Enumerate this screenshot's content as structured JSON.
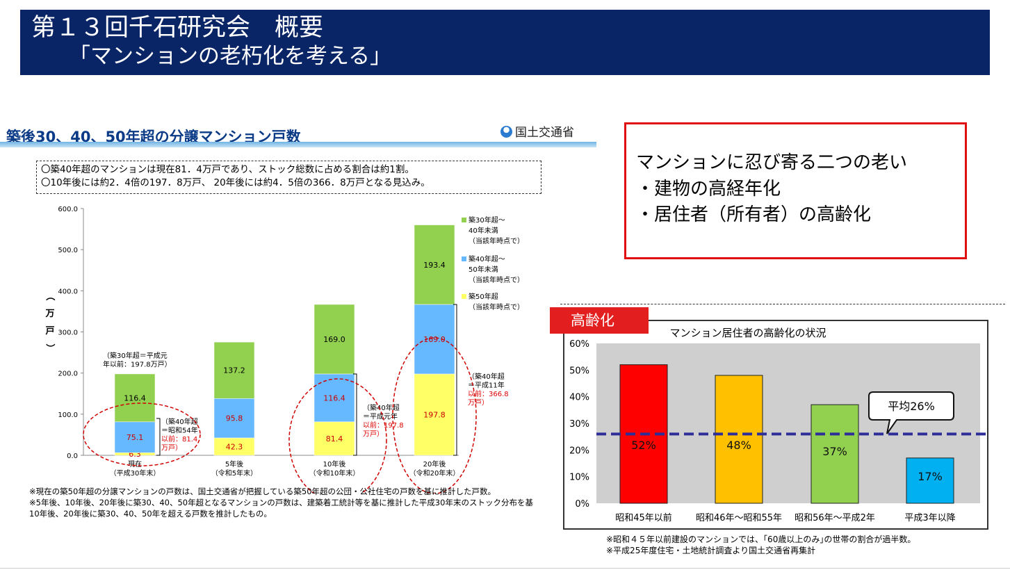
{
  "slide": {
    "title_line1": "第１３回千石研究会　概要",
    "title_line2": "「マンションの老朽化を考える」"
  },
  "left_panel": {
    "heading": "築後30、40、50年超の分譲マンション戸数",
    "ministry": "国土交通省",
    "summary": [
      "〇築40年超のマンションは現在81．4万戸であり、ストック総数に占める割合は約1割。",
      "〇10年後には約2．4倍の197．8万戸、 20年後には約4．5倍の366．8万戸となる見込み。"
    ],
    "footnotes": [
      "※現在の築50年超の分譲マンションの戸数は、国土交通省が把握している築50年超の公団・公社住宅の戸数を基に推計した戸数。",
      "※5年後、10年後、20年後に築30、40、50年超となるマンションの戸数は、建築着工統計等を基に推計した平成30年末のストック分布を基",
      "10年後、20年後に築30、40、50年を超える戸数を推計したもの。"
    ]
  },
  "callout": {
    "lines": [
      "マンションに忍び寄る二つの老い",
      "・建物の高経年化",
      "・居住者（所有者）の高齢化"
    ]
  },
  "right_panel": {
    "tag": "高齢化",
    "notes": [
      "※昭和４５年以前建設のマンションでは、｢60歳以上のみ｣の世帯の割合が過半数。",
      "※平成25年度住宅・土地統計調査より国土交通省再集計"
    ]
  },
  "chart_data": [
    {
      "type": "bar",
      "stacked": true,
      "categories": [
        "現在",
        "5年後",
        "10年後",
        "20年後"
      ],
      "category_sublabels": [
        "（平成30年末）",
        "（令和5年末）",
        "（令和10年末）",
        "（令和20年末）"
      ],
      "series": [
        {
          "name": "築50年超",
          "values": [
            6.3,
            42.3,
            81.4,
            197.8
          ],
          "color": "#ffff66"
        },
        {
          "name": "築40年超～50年未満",
          "values": [
            75.1,
            95.8,
            116.4,
            169.0
          ],
          "color": "#66b8ff"
        },
        {
          "name": "築30年超～40年未満",
          "values": [
            116.4,
            137.2,
            169.0,
            193.4
          ],
          "color": "#92d050"
        }
      ],
      "legend": [
        {
          "lines": [
            "築30年超～",
            "40年未満",
            "（当該年時点で）"
          ],
          "color": "#92d050"
        },
        {
          "lines": [
            "築40年超～",
            "50年未満",
            "（当該年時点で）"
          ],
          "color": "#66b8ff"
        },
        {
          "lines": [
            "築50年超",
            "（当該年時点で）"
          ],
          "color": "#ffff66"
        }
      ],
      "legend_position": "right",
      "ylabel": "（万戸）",
      "ylim": [
        0,
        600
      ],
      "yticks": [
        "0.0",
        "100.0",
        "200.0",
        "300.0",
        "400.0",
        "500.0",
        "600.0"
      ],
      "annotations": [
        {
          "lines": [
            "（築30年超＝平成元",
            "年以前：197.8万戸）"
          ]
        },
        {
          "lines": [
            "（築40年超",
            "＝昭和54年",
            "以前：81.4",
            "万戸）"
          ],
          "red_from": 2
        },
        {
          "lines": [
            "（築40年超",
            "＝平成元年",
            "以前：197.8",
            "万戸）"
          ],
          "red_from": 2
        },
        {
          "lines": [
            "（築40年超",
            "＝平成11年",
            "以前：366.8",
            "万戸）"
          ],
          "red_from": 2
        }
      ],
      "grid": false
    },
    {
      "type": "bar",
      "title": "マンション居住者の高齢化の状況",
      "categories": [
        "昭和45年以前",
        "昭和46年～昭和55年",
        "昭和56年～平成2年",
        "平成3年以降"
      ],
      "values": [
        52,
        48,
        37,
        17
      ],
      "value_labels": [
        "52%",
        "48%",
        "37%",
        "17%"
      ],
      "colors": [
        "#ff0000",
        "#ffc000",
        "#92d050",
        "#00b0f0"
      ],
      "yticks": [
        "0%",
        "10%",
        "20%",
        "30%",
        "40%",
        "50%",
        "60%"
      ],
      "ylim": [
        0,
        60
      ],
      "average": {
        "value": 26,
        "label": "平均26%",
        "color": "#2e2e99"
      },
      "grid": false
    }
  ]
}
